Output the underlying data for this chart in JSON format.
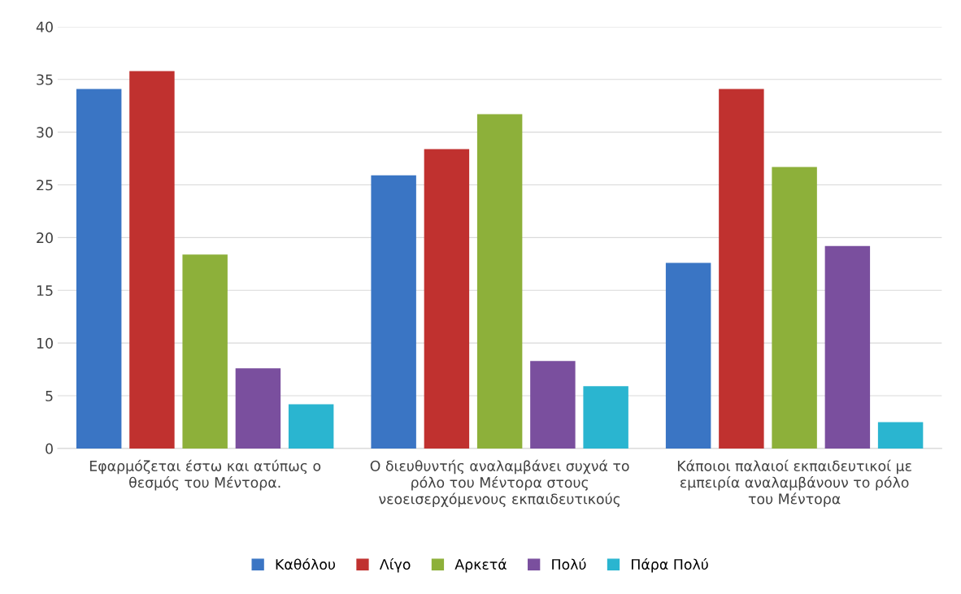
{
  "chart_data": {
    "type": "bar",
    "categories": [
      "Εφαρμόζεται έστω και ατύπως ο\nθεσμός του Μέντορα.",
      "Ο διευθυντής αναλαμβάνει συχνά το\nρόλο του Μέντορα στους\nνεοεισερχόμενους εκπαιδευτικούς",
      "Κάποιοι παλαιοί εκπαιδευτικοί με\nεμπειρία αναλαμβάνουν το ρόλο\nτου Μέντορα"
    ],
    "series": [
      {
        "name": "Καθόλου",
        "color": "#3a75c4",
        "values": [
          34.1,
          25.9,
          17.6
        ]
      },
      {
        "name": "Λίγο",
        "color": "#c0312f",
        "values": [
          35.8,
          28.4,
          34.1
        ]
      },
      {
        "name": "Αρκετά",
        "color": "#8db03a",
        "values": [
          18.4,
          31.7,
          26.7
        ]
      },
      {
        "name": "Πολύ",
        "color": "#7a4f9e",
        "values": [
          7.6,
          8.3,
          19.2
        ]
      },
      {
        "name": "Πάρα Πολύ",
        "color": "#2ab5d0",
        "values": [
          4.2,
          5.9,
          2.5
        ]
      }
    ],
    "ylim": [
      0,
      40
    ],
    "yticks": [
      0,
      5,
      10,
      15,
      20,
      25,
      30,
      35,
      40
    ],
    "grid": "y",
    "legend": "bottom"
  }
}
